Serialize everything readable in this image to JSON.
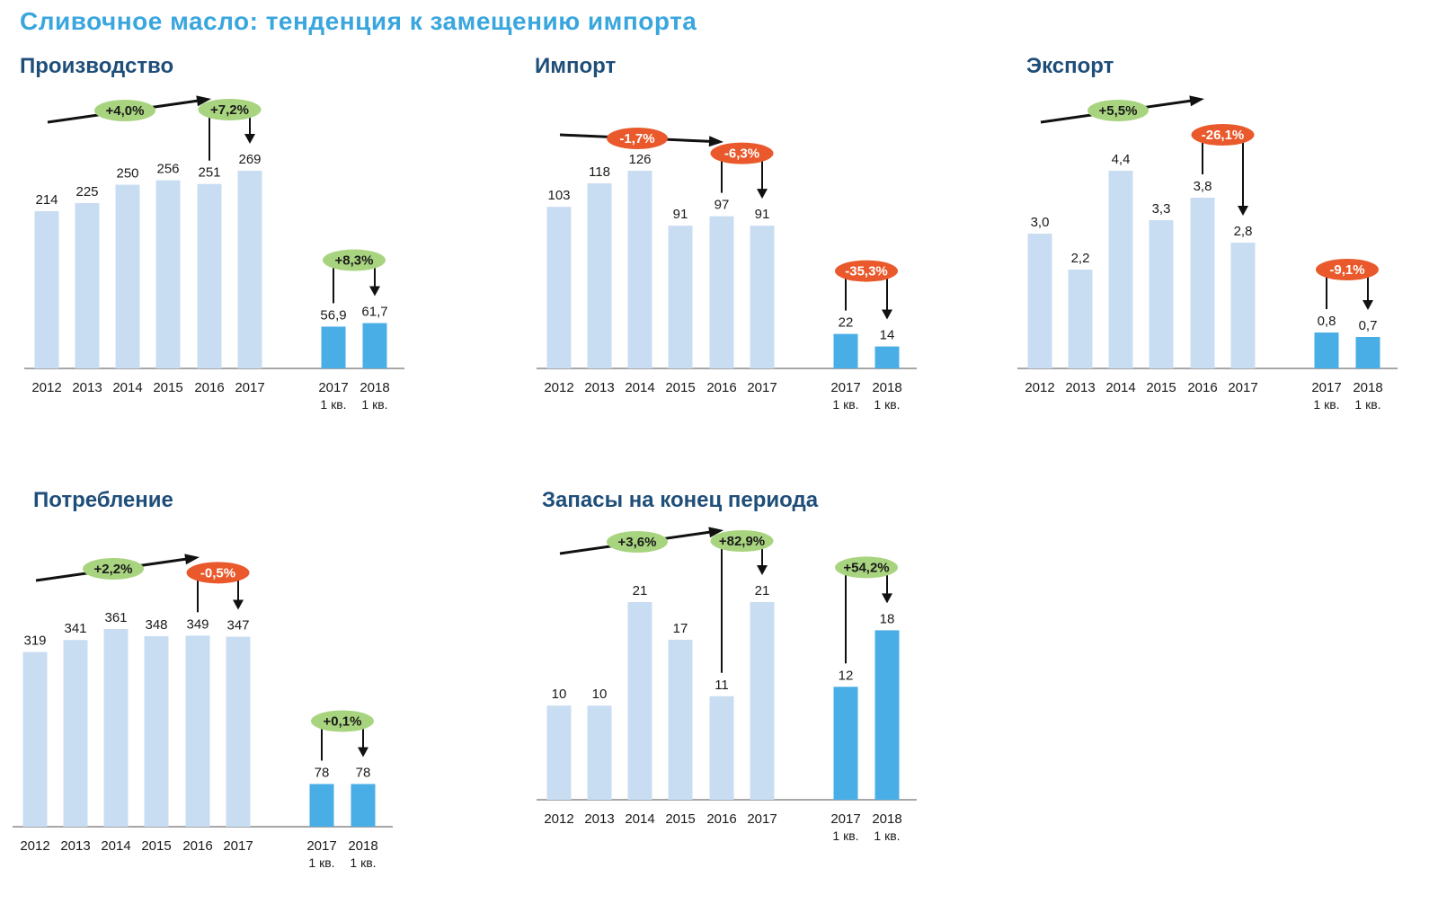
{
  "page_title": "Сливочное масло: тенденция к замещению импорта",
  "colors": {
    "bar_year": "#c9ddf2",
    "bar_quarter": "#4aaee6",
    "badge_positive": "#a8d47f",
    "badge_negative": "#e9592b",
    "title": "#1f4e79",
    "main_title": "#3aa6de"
  },
  "chart_data": [
    {
      "type": "bar",
      "title": "Производство",
      "categories": [
        "2012",
        "2013",
        "2014",
        "2015",
        "2016",
        "2017",
        "2017 1 кв.",
        "2018 1 кв."
      ],
      "values": [
        214,
        225,
        250,
        256,
        251,
        269,
        56.9,
        61.7
      ],
      "labels": [
        "214",
        "225",
        "250",
        "256",
        "251",
        "269",
        "56,9",
        "61,7"
      ],
      "trend": "+4,0%",
      "annotations": [
        {
          "text": "+7,2%",
          "from": "2016",
          "to": "2017",
          "sign": "positive"
        },
        {
          "text": "+8,3%",
          "from": "2017 1 кв.",
          "to": "2018 1 кв.",
          "sign": "positive"
        }
      ]
    },
    {
      "type": "bar",
      "title": "Импорт",
      "categories": [
        "2012",
        "2013",
        "2014",
        "2015",
        "2016",
        "2017",
        "2017 1 кв.",
        "2018 1 кв."
      ],
      "values": [
        103,
        118,
        126,
        91,
        97,
        91,
        22,
        14
      ],
      "labels": [
        "103",
        "118",
        "126",
        "91",
        "97",
        "91",
        "22",
        "14"
      ],
      "trend": "-1,7%",
      "annotations": [
        {
          "text": "-6,3%",
          "from": "2016",
          "to": "2017",
          "sign": "negative"
        },
        {
          "text": "-35,3%",
          "from": "2017 1 кв.",
          "to": "2018 1 кв.",
          "sign": "negative"
        }
      ]
    },
    {
      "type": "bar",
      "title": "Экспорт",
      "categories": [
        "2012",
        "2013",
        "2014",
        "2015",
        "2016",
        "2017",
        "2017 1 кв.",
        "2018 1 кв."
      ],
      "values": [
        3.0,
        2.2,
        4.4,
        3.3,
        3.8,
        2.8,
        0.8,
        0.7
      ],
      "labels": [
        "3,0",
        "2,2",
        "4,4",
        "3,3",
        "3,8",
        "2,8",
        "0,8",
        "0,7"
      ],
      "trend": "+5,5%",
      "annotations": [
        {
          "text": "-26,1%",
          "from": "2016",
          "to": "2017",
          "sign": "negative"
        },
        {
          "text": "-9,1%",
          "from": "2017 1 кв.",
          "to": "2018 1 кв.",
          "sign": "negative"
        }
      ]
    },
    {
      "type": "bar",
      "title": "Потребление",
      "categories": [
        "2012",
        "2013",
        "2014",
        "2015",
        "2016",
        "2017",
        "2017 1 кв.",
        "2018 1 кв."
      ],
      "values": [
        319,
        341,
        361,
        348,
        349,
        347,
        78,
        78
      ],
      "labels": [
        "319",
        "341",
        "361",
        "348",
        "349",
        "347",
        "78",
        "78"
      ],
      "trend": "+2,2%",
      "annotations": [
        {
          "text": "-0,5%",
          "from": "2016",
          "to": "2017",
          "sign": "negative"
        },
        {
          "text": "+0,1%",
          "from": "2017 1 кв.",
          "to": "2018 1 кв.",
          "sign": "positive"
        }
      ]
    },
    {
      "type": "bar",
      "title": "Запасы на конец периода",
      "categories": [
        "2012",
        "2013",
        "2014",
        "2015",
        "2016",
        "2017",
        "2017 1 кв.",
        "2018 1 кв."
      ],
      "values": [
        10,
        10,
        21,
        17,
        11,
        21,
        12,
        18
      ],
      "labels": [
        "10",
        "10",
        "21",
        "17",
        "11",
        "21",
        "12",
        "18"
      ],
      "trend": "+3,6%",
      "annotations": [
        {
          "text": "+82,9%",
          "from": "2016",
          "to": "2017",
          "sign": "positive"
        },
        {
          "text": "+54,2%",
          "from": "2017 1 кв.",
          "to": "2018 1 кв.",
          "sign": "positive"
        }
      ]
    }
  ]
}
